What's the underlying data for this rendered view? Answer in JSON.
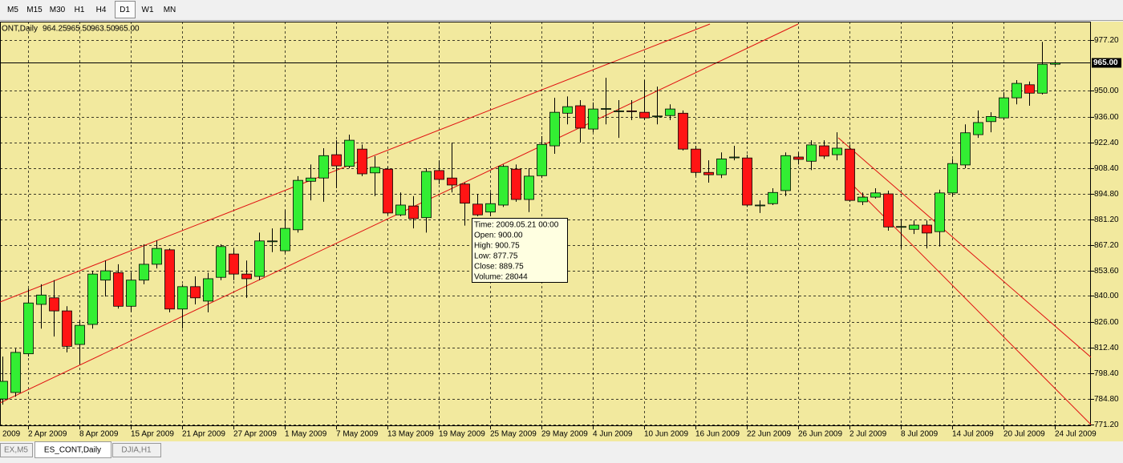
{
  "toolbar": {
    "timeframes": [
      "M5",
      "M15",
      "M30",
      "H1",
      "H4",
      "D1",
      "W1",
      "MN"
    ],
    "active": "D1"
  },
  "chart_data": {
    "type": "candlestick",
    "label": "ONT,Daily",
    "ohlc_labels": [
      "964.25",
      "965.50",
      "963.50",
      "965.00"
    ],
    "clipped_date_label": "2009",
    "categories": [
      null,
      null,
      "2 Apr 2009",
      null,
      null,
      null,
      "8 Apr 2009",
      null,
      null,
      null,
      "15 Apr 2009",
      null,
      null,
      null,
      "21 Apr 2009",
      null,
      null,
      null,
      "27 Apr 2009",
      null,
      null,
      null,
      "1 May 2009",
      null,
      null,
      null,
      "7 May 2009",
      null,
      null,
      null,
      "13 May 2009",
      null,
      null,
      null,
      "19 May 2009",
      null,
      null,
      null,
      "25 May 2009",
      null,
      null,
      null,
      "29 May 2009",
      null,
      null,
      null,
      "4 Jun 2009",
      null,
      null,
      null,
      "10 Jun 2009",
      null,
      null,
      null,
      "16 Jun 2009",
      null,
      null,
      null,
      "22 Jun 2009",
      null,
      null,
      null,
      "26 Jun 2009",
      null,
      null,
      null,
      "2 Jul 2009",
      null,
      null,
      null,
      "8 Jul 2009",
      null,
      null,
      null,
      "14 Jul 2009",
      null,
      null,
      null,
      "20 Jul 2009",
      null,
      null,
      null,
      "24 Jul 2009"
    ],
    "open": [
      784.75,
      788.25,
      809,
      835.5,
      839,
      832,
      814,
      824.75,
      848.5,
      852.5,
      834.5,
      848.5,
      857,
      864.75,
      833,
      845,
      837.25,
      850,
      862.5,
      851.75,
      850.5,
      869.25,
      864.25,
      875.5,
      901.5,
      903.25,
      915.75,
      909.5,
      918.75,
      906,
      908,
      883.5,
      888.25,
      882,
      907.25,
      903.25,
      900,
      889.25,
      885,
      888.75,
      908,
      891.75,
      904.5,
      920.5,
      938,
      942,
      929.5,
      940.25,
      939,
      939.25,
      938.5,
      936.25,
      936.75,
      938,
      918.75,
      906.25,
      905,
      914.25,
      914,
      888.5,
      889.5,
      896.5,
      914.5,
      912.25,
      920.5,
      915.75,
      918.75,
      890.5,
      893,
      894.75,
      877,
      875.75,
      878,
      874.5,
      895.25,
      910.25,
      926.5,
      933.5,
      935.5,
      946.25,
      953.25,
      948.75,
      964.25
    ],
    "high": [
      807.5,
      811.75,
      844,
      846.25,
      848.5,
      834.5,
      827,
      853.5,
      859,
      857,
      852.5,
      867.75,
      869.75,
      865.5,
      846.25,
      850.5,
      852.5,
      867.75,
      865.5,
      859,
      874,
      876.25,
      886.25,
      904.25,
      910.5,
      919.25,
      923.5,
      926.5,
      921.25,
      915,
      909.25,
      895.5,
      893.5,
      908.5,
      912.75,
      922.25,
      900.75,
      894.75,
      895.5,
      910.5,
      910.5,
      908.5,
      925.75,
      946.25,
      947,
      945,
      943.75,
      957,
      945,
      945,
      955.75,
      952.25,
      942.75,
      939.5,
      920.5,
      912.75,
      917,
      920.5,
      915.75,
      891.25,
      897.75,
      917,
      917,
      923.5,
      923.5,
      927.75,
      921.25,
      895.5,
      897.75,
      896.5,
      880.5,
      880.5,
      880.5,
      897,
      913.5,
      932,
      939.5,
      938.5,
      949.25,
      955.75,
      955,
      976.25,
      965.5
    ],
    "low": [
      781.75,
      786,
      807.5,
      822.5,
      818.25,
      809.75,
      803.25,
      822.5,
      839.75,
      833.25,
      831.25,
      846.25,
      854.75,
      831.25,
      822.5,
      835.5,
      831.25,
      848.5,
      848.5,
      839,
      848.5,
      863.5,
      863,
      874,
      891.25,
      890.5,
      897.75,
      908.5,
      904.25,
      893.5,
      883.5,
      882.75,
      876.25,
      874,
      900,
      895.5,
      877.75,
      882.75,
      882.75,
      887.75,
      890.5,
      885,
      903.25,
      916.25,
      932,
      922.25,
      927.75,
      932,
      924.75,
      934.25,
      934.25,
      932,
      934.25,
      918,
      904.25,
      900.75,
      903.25,
      912.75,
      887.75,
      884.5,
      888.75,
      893.5,
      910.5,
      907.5,
      913.5,
      912.75,
      890.5,
      888.75,
      892.25,
      875,
      865.5,
      873.25,
      865.5,
      866.5,
      893.5,
      908.5,
      924.75,
      927.75,
      934.25,
      942.75,
      942,
      948,
      963.5
    ],
    "close": [
      794.25,
      809.75,
      836.25,
      840.5,
      832,
      813,
      824.25,
      851.75,
      853.5,
      834.5,
      848.5,
      857,
      865.5,
      833,
      845,
      839,
      849.25,
      866.5,
      851.75,
      849.25,
      869.5,
      869.5,
      876.25,
      902,
      903.25,
      915.25,
      909.75,
      923.5,
      905.5,
      909,
      884.5,
      888.75,
      881.5,
      906.75,
      902.5,
      899.5,
      889.75,
      883.5,
      889.5,
      909.5,
      891.75,
      904.25,
      921.25,
      938.5,
      941.5,
      930,
      940.25,
      940.5,
      939.25,
      939,
      935.5,
      936.5,
      940.25,
      918.75,
      906.25,
      905,
      913.5,
      914.5,
      888.75,
      888.75,
      895.5,
      915.25,
      913.25,
      921,
      915,
      919.25,
      891.25,
      893,
      895.25,
      877,
      877.25,
      878,
      873.75,
      895.25,
      911,
      927.5,
      933,
      936.25,
      946.25,
      954,
      948.75,
      964.25,
      965
    ],
    "colors": {
      "up": "#33ee33",
      "down": "#ff1414"
    },
    "ylim": [
      770.2,
      987.1
    ],
    "yticks": [
      {
        "value": 977.2,
        "label": "977.20"
      },
      {
        "value": 950,
        "label": "950.00"
      },
      {
        "value": 936,
        "label": "936.00"
      },
      {
        "value": 922.4,
        "label": "922.40"
      },
      {
        "value": 908.4,
        "label": "908.40"
      },
      {
        "value": 894.8,
        "label": "894.80"
      },
      {
        "value": 881.2,
        "label": "881.20"
      },
      {
        "value": 867.2,
        "label": "867.20"
      },
      {
        "value": 853.6,
        "label": "853.60"
      },
      {
        "value": 840,
        "label": "840.00"
      },
      {
        "value": 826,
        "label": "826.00"
      },
      {
        "value": 812.4,
        "label": "812.40"
      },
      {
        "value": 798.4,
        "label": "798.40"
      },
      {
        "value": 784.8,
        "label": "784.80"
      },
      {
        "value": 771.2,
        "label": "771.20"
      }
    ],
    "grid": true,
    "current_price": {
      "value": 965,
      "label": "965.00"
    },
    "tooltip": {
      "lines": [
        "Time: 2009.05.21 00:00",
        "Open: 900.00",
        "High: 900.75",
        "Low:  877.75",
        "Close: 889.75",
        "Volume: 28044"
      ]
    }
  },
  "tabs": {
    "items": [
      "EX,M5",
      "ES_CONT,Daily",
      "DJIA,H1"
    ],
    "active": 1
  }
}
